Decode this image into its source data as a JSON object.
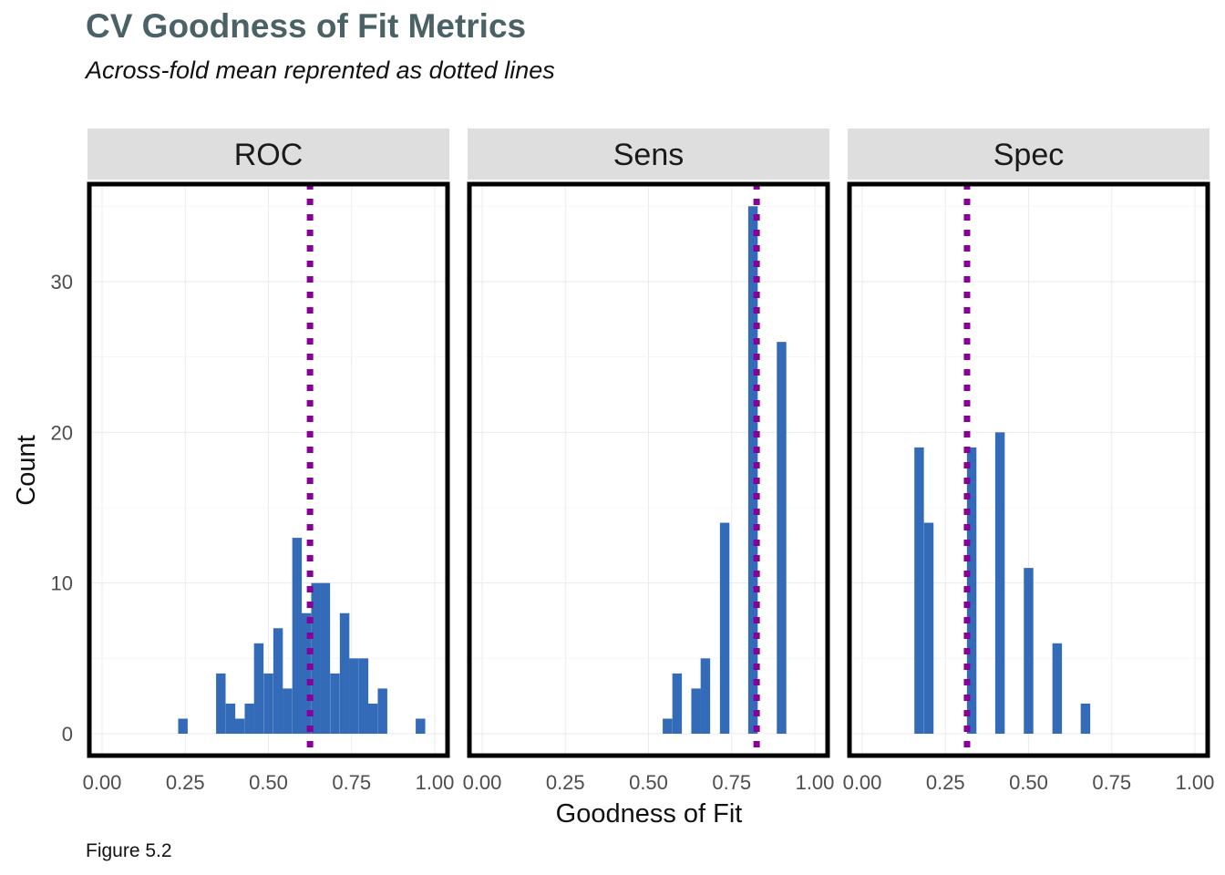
{
  "title": "CV Goodness of Fit Metrics",
  "subtitle": "Across-fold mean reprented as dotted lines",
  "caption": "Figure 5.2",
  "chart_data": {
    "type": "bar",
    "subtype": "histogram-faceted",
    "xlabel": "Goodness of Fit",
    "ylabel": "Count",
    "xlim": [
      0,
      1
    ],
    "ylim": [
      0,
      35
    ],
    "x_ticks": [
      "0.00",
      "0.25",
      "0.50",
      "0.75",
      "1.00"
    ],
    "x_tick_values": [
      0,
      0.25,
      0.5,
      0.75,
      1
    ],
    "y_ticks": [
      "0",
      "10",
      "20",
      "30"
    ],
    "y_tick_values": [
      0,
      10,
      20,
      30
    ],
    "bin_width": 0.0286,
    "grid": true,
    "colors": {
      "bar": "#336bb8",
      "mean_line": "#880099",
      "strip": "#dedede",
      "grid": "#ebebeb",
      "title": "#4a6266"
    },
    "facets": [
      {
        "label": "ROC",
        "mean": 0.625,
        "bins": [
          {
            "x": 0.243,
            "count": 1
          },
          {
            "x": 0.357,
            "count": 4
          },
          {
            "x": 0.386,
            "count": 2
          },
          {
            "x": 0.414,
            "count": 1
          },
          {
            "x": 0.443,
            "count": 2
          },
          {
            "x": 0.471,
            "count": 6
          },
          {
            "x": 0.5,
            "count": 4
          },
          {
            "x": 0.529,
            "count": 7
          },
          {
            "x": 0.557,
            "count": 3
          },
          {
            "x": 0.586,
            "count": 13
          },
          {
            "x": 0.614,
            "count": 8
          },
          {
            "x": 0.643,
            "count": 10
          },
          {
            "x": 0.671,
            "count": 10
          },
          {
            "x": 0.7,
            "count": 4
          },
          {
            "x": 0.729,
            "count": 8
          },
          {
            "x": 0.757,
            "count": 5
          },
          {
            "x": 0.786,
            "count": 5
          },
          {
            "x": 0.814,
            "count": 2
          },
          {
            "x": 0.843,
            "count": 3
          },
          {
            "x": 0.957,
            "count": 1
          }
        ]
      },
      {
        "label": "Sens",
        "mean": 0.825,
        "bins": [
          {
            "x": 0.557,
            "count": 1
          },
          {
            "x": 0.586,
            "count": 4
          },
          {
            "x": 0.643,
            "count": 3
          },
          {
            "x": 0.671,
            "count": 5
          },
          {
            "x": 0.729,
            "count": 14
          },
          {
            "x": 0.814,
            "count": 35
          },
          {
            "x": 0.9,
            "count": 26
          }
        ]
      },
      {
        "label": "Spec",
        "mean": 0.315,
        "bins": [
          {
            "x": 0.171,
            "count": 19
          },
          {
            "x": 0.2,
            "count": 14
          },
          {
            "x": 0.329,
            "count": 19
          },
          {
            "x": 0.414,
            "count": 20
          },
          {
            "x": 0.5,
            "count": 11
          },
          {
            "x": 0.586,
            "count": 6
          },
          {
            "x": 0.671,
            "count": 2
          }
        ]
      }
    ]
  }
}
